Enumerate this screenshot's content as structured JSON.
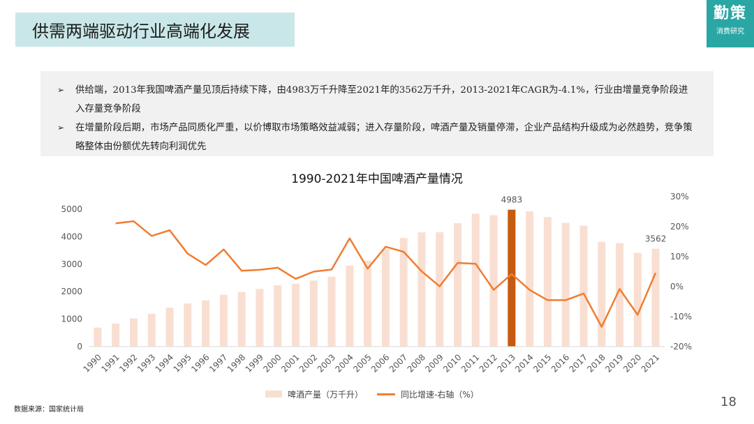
{
  "header": {
    "title": "供需两端驱动行业高端化发展",
    "logo_main": "勤策",
    "logo_sub": "消费研究"
  },
  "bullets": [
    "供给端，2013年我国啤酒产量见顶后持续下降，由4983万千升降至2021年的3562万千升，2013-2021年CAGR为-4.1%，行业由增量竞争阶段进入存量竞争阶段",
    "在增量阶段后期，市场产品同质化严重，以价博取市场策略效益减弱；进入存量阶段，啤酒产量及销量停滞，企业产品结构升级成为必然趋势，竞争策略整体由份额优先转向利润优先"
  ],
  "bullet_mark": "➢",
  "footer": {
    "source": "数据来源：国家统计局",
    "page_number": "18"
  },
  "colors": {
    "bar": "#f9dfd2",
    "bar_highlight": "#c55a11",
    "line": "#ef7d31",
    "title_bg": "#c9e7e8",
    "logo_bg": "#2aa7a4"
  },
  "chart_data": {
    "type": "bar",
    "title": "1990-2021年中国啤酒产量情况",
    "categories": [
      "1990",
      "1991",
      "1992",
      "1993",
      "1994",
      "1995",
      "1996",
      "1997",
      "1998",
      "1999",
      "2000",
      "2001",
      "2002",
      "2003",
      "2004",
      "2005",
      "2006",
      "2007",
      "2008",
      "2009",
      "2010",
      "2011",
      "2012",
      "2013",
      "2014",
      "2015",
      "2016",
      "2017",
      "2018",
      "2019",
      "2020",
      "2021"
    ],
    "series": [
      {
        "name": "啤酒产量（万千升）",
        "type": "bar",
        "axis": "left",
        "values": [
          692,
          838,
          1021,
          1192,
          1415,
          1569,
          1682,
          1889,
          1988,
          2099,
          2231,
          2289,
          2403,
          2540,
          2949,
          3126,
          3543,
          3954,
          4157,
          4162,
          4491,
          4834,
          4782,
          4983,
          4922,
          4715,
          4506,
          4402,
          3812,
          3765,
          3411,
          3562
        ]
      },
      {
        "name": "同比增速-右轴（%）",
        "type": "line",
        "axis": "right",
        "values": [
          null,
          21.1,
          21.8,
          16.9,
          18.8,
          11.0,
          7.2,
          12.4,
          5.3,
          5.6,
          6.3,
          2.6,
          5.0,
          5.7,
          16.1,
          6.0,
          13.3,
          11.6,
          5.1,
          0.1,
          7.9,
          7.6,
          -1.1,
          4.2,
          -1.1,
          -4.5,
          -4.5,
          -2.3,
          -13.4,
          -0.8,
          -9.4,
          4.6
        ]
      }
    ],
    "highlight_category": "2013",
    "data_labels": {
      "2013": "4983",
      "2021": "3562"
    },
    "y_left": {
      "min": 0,
      "max": 5000,
      "ticks": [
        0,
        1000,
        2000,
        3000,
        4000,
        5000
      ]
    },
    "y_right": {
      "min": -20,
      "max": 30,
      "ticks": [
        -20,
        -10,
        0,
        10,
        20,
        30
      ],
      "tick_labels": [
        "-20%",
        "-10%",
        "0%",
        "10%",
        "20%",
        "30%"
      ]
    },
    "legend_position": "bottom",
    "grid": false
  }
}
